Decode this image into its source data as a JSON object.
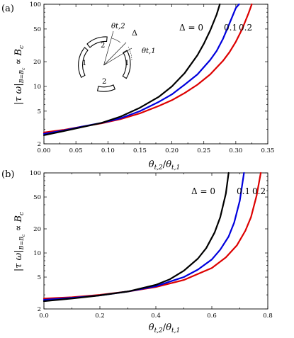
{
  "panels": [
    {
      "letter": "(a)",
      "ylabel": "|τ ω|B=Bc ∝ Bc",
      "xlabel": "θt,2/θt,1",
      "inset": {
        "labels": [
          "θt,2",
          "Δ",
          "θt,1",
          "2",
          "1",
          "2",
          "1"
        ]
      }
    },
    {
      "letter": "(b)",
      "ylabel": "|τ ω|B=Bc ∝ Bc",
      "xlabel": "θt,2/θt,1"
    }
  ],
  "colors": {
    "delta_0": "#000000",
    "delta_0.1": "#0000dd",
    "delta_0.2": "#dd0000"
  },
  "chart_data": [
    {
      "type": "line",
      "title": "(a)",
      "xlabel": "θt,2/θt,1",
      "ylabel": "|τ ω|B=Bc ∝ Bc",
      "xlim": [
        0,
        0.35
      ],
      "ylim": [
        2,
        100
      ],
      "y_scale": "log",
      "x_ticks": [
        "0.00",
        "0.05",
        "0.10",
        "0.15",
        "0.20",
        "0.25",
        "0.30",
        "0.35"
      ],
      "y_ticks": [
        "2",
        "5",
        "10",
        "20",
        "50",
        "100"
      ],
      "series_labels": [
        "Δ = 0",
        "0.1",
        "0.2"
      ],
      "series": [
        {
          "name": "Δ = 0",
          "color": "#000000",
          "x": [
            0,
            0.03,
            0.06,
            0.09,
            0.12,
            0.15,
            0.18,
            0.2,
            0.22,
            0.24,
            0.25,
            0.26,
            0.27,
            0.275
          ],
          "y": [
            2.55,
            2.85,
            3.2,
            3.6,
            4.3,
            5.5,
            7.5,
            10,
            14.5,
            24,
            33,
            48,
            75,
            100
          ]
        },
        {
          "name": "0.1",
          "color": "#0000dd",
          "x": [
            0,
            0.03,
            0.06,
            0.09,
            0.12,
            0.15,
            0.18,
            0.2,
            0.22,
            0.24,
            0.26,
            0.27,
            0.28,
            0.29,
            0.3,
            0.305
          ],
          "y": [
            2.65,
            2.9,
            3.25,
            3.6,
            4.1,
            5.0,
            6.5,
            8.0,
            10.5,
            14,
            21,
            27,
            38,
            58,
            90,
            100
          ]
        },
        {
          "name": "0.2",
          "color": "#dd0000",
          "x": [
            0,
            0.03,
            0.06,
            0.09,
            0.12,
            0.15,
            0.18,
            0.2,
            0.22,
            0.24,
            0.26,
            0.28,
            0.29,
            0.3,
            0.31,
            0.32,
            0.325
          ],
          "y": [
            2.75,
            2.95,
            3.25,
            3.55,
            4.0,
            4.7,
            5.8,
            6.8,
            8.3,
            10.5,
            14,
            20.5,
            26,
            35,
            50,
            78,
            100
          ]
        }
      ]
    },
    {
      "type": "line",
      "title": "(b)",
      "xlabel": "θt,2/θt,1",
      "ylabel": "|τ ω|B=Bc ∝ Bc",
      "xlim": [
        0,
        0.8
      ],
      "ylim": [
        2,
        100
      ],
      "y_scale": "log",
      "x_ticks": [
        "0.0",
        "0.2",
        "0.4",
        "0.6",
        "0.8"
      ],
      "y_ticks": [
        "2",
        "5",
        "10",
        "20",
        "50",
        "100"
      ],
      "series_labels": [
        "Δ = 0",
        "0.1",
        "0.2"
      ],
      "series": [
        {
          "name": "Δ = 0",
          "color": "#000000",
          "x": [
            0,
            0.1,
            0.2,
            0.3,
            0.4,
            0.45,
            0.5,
            0.55,
            0.58,
            0.61,
            0.63,
            0.65,
            0.66
          ],
          "y": [
            2.5,
            2.7,
            2.95,
            3.3,
            4.0,
            4.7,
            6.0,
            8.5,
            11.5,
            18,
            28,
            55,
            100
          ]
        },
        {
          "name": "0.1",
          "color": "#0000dd",
          "x": [
            0,
            0.1,
            0.2,
            0.3,
            0.4,
            0.5,
            0.55,
            0.6,
            0.63,
            0.66,
            0.68,
            0.7,
            0.715
          ],
          "y": [
            2.6,
            2.75,
            2.95,
            3.3,
            3.85,
            5.0,
            6.2,
            8.3,
            11,
            16,
            24,
            45,
            100
          ]
        },
        {
          "name": "0.2",
          "color": "#dd0000",
          "x": [
            0,
            0.1,
            0.2,
            0.3,
            0.4,
            0.5,
            0.6,
            0.65,
            0.69,
            0.72,
            0.74,
            0.76,
            0.775
          ],
          "y": [
            2.7,
            2.8,
            3.0,
            3.3,
            3.75,
            4.6,
            6.5,
            8.8,
            12.5,
            19,
            28,
            52,
            100
          ]
        }
      ]
    }
  ]
}
